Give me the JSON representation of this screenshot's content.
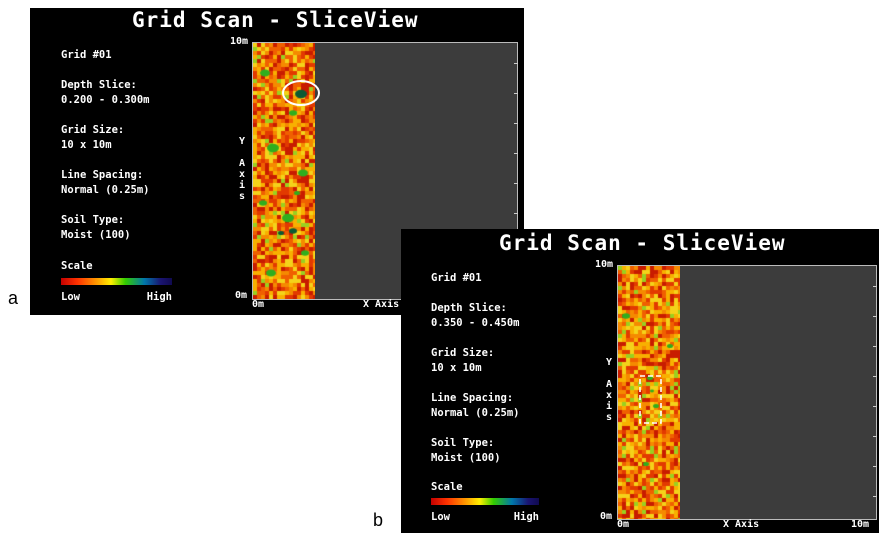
{
  "panels": [
    {
      "letter": "a",
      "title": "Grid Scan - SliceView",
      "grid_label": "Grid #01",
      "depth_slice_label": "Depth Slice:",
      "depth_slice_value": "0.200 - 0.300m",
      "grid_size_label": "Grid Size:",
      "grid_size_value": "10 x 10m",
      "line_spacing_label": "Line Spacing:",
      "line_spacing_value": "Normal (0.25m)",
      "soil_type_label": "Soil Type:",
      "soil_type_value": "Moist (100)",
      "scale_label": "Scale",
      "scale_low": "Low",
      "scale_high": "High",
      "y_top": "10m",
      "y_bottom": "0m",
      "x_start": "0m",
      "x_axis_label": "X Axis",
      "y_axis_label": "YAxis",
      "annotation": "circle"
    },
    {
      "letter": "b",
      "title": "Grid Scan - SliceView",
      "grid_label": "Grid #01",
      "depth_slice_label": "Depth Slice:",
      "depth_slice_value": "0.350 - 0.450m",
      "grid_size_label": "Grid Size:",
      "grid_size_value": "10 x 10m",
      "line_spacing_label": "Line Spacing:",
      "line_spacing_value": "Normal (0.25m)",
      "soil_type_label": "Soil Type:",
      "soil_type_value": "Moist (100)",
      "scale_label": "Scale",
      "scale_low": "Low",
      "scale_high": "High",
      "y_top": "10m",
      "y_bottom": "0m",
      "x_start": "0m",
      "x_axis_label": "X Axis",
      "x_end": "10m",
      "y_axis_label": "YAxis",
      "annotation": "dashed-rectangle"
    }
  ],
  "colors": {
    "screen_bg": "#000000",
    "plot_bg": "#3c3c3c",
    "annotation": "#ffffff"
  }
}
